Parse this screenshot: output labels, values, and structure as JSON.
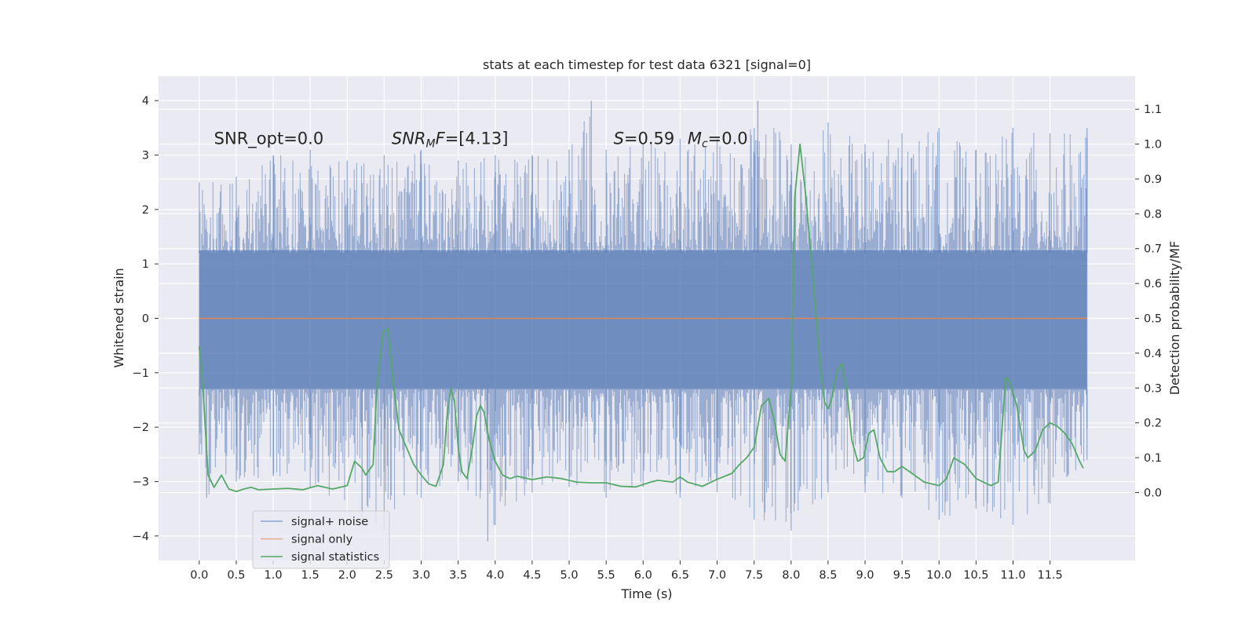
{
  "chart_data": {
    "type": "line",
    "title": "stats at each timestep for test data 6321 [signal=0]",
    "xlabel": "Time (s)",
    "ylabel": "Whitened strain",
    "y2label": "Detection probability/MF",
    "xlim": [
      -0.55,
      12.65
    ],
    "ylim": [
      -4.45,
      4.45
    ],
    "y2lim": [
      -0.195,
      1.195
    ],
    "x_ticks": [
      0.0,
      0.5,
      1.0,
      1.5,
      2.0,
      2.5,
      3.0,
      3.5,
      4.0,
      4.5,
      5.0,
      5.5,
      6.0,
      6.5,
      7.0,
      7.5,
      8.0,
      8.5,
      9.0,
      9.5,
      10.0,
      10.5,
      11.0,
      11.5
    ],
    "x_tick_labels": [
      "0.0",
      "0.5",
      "1.0",
      "1.5",
      "2.0",
      "2.5",
      "3.0",
      "3.5",
      "4.0",
      "4.5",
      "5.0",
      "5.5",
      "6.0",
      "6.5",
      "7.0",
      "7.5",
      "8.0",
      "8.5",
      "9.0",
      "9.5",
      "10.0",
      "10.5",
      "11.0",
      "11.5"
    ],
    "y_ticks": [
      4,
      3,
      2,
      1,
      0,
      -1,
      -2,
      -3,
      -4
    ],
    "y_tick_labels": [
      "4",
      "3",
      "2",
      "1",
      "0",
      "−1",
      "−2",
      "−3",
      "−4"
    ],
    "y2_ticks": [
      1.1,
      1.0,
      0.9,
      0.8,
      0.7,
      0.6,
      0.5,
      0.4,
      0.3,
      0.2,
      0.1,
      0.0
    ],
    "y2_tick_labels": [
      "1.1",
      "1.0",
      "0.9",
      "0.8",
      "0.7",
      "0.6",
      "0.5",
      "0.4",
      "0.3",
      "0.2",
      "0.1",
      "0.0"
    ],
    "grid": true,
    "legend_position": "lower-left",
    "annotations": [
      {
        "text": "SNR_opt=0.0",
        "x": 0.2,
        "y": 3.2
      },
      {
        "text": "SNR",
        "sub": "M",
        "text2": "F=[4.13]",
        "italic": true,
        "x": 2.6,
        "y": 3.2
      },
      {
        "text": "S",
        "italic_part": true,
        "rest": "=0.59",
        "x": 5.6,
        "y": 3.2
      },
      {
        "text": "M",
        "sub": "c",
        "rest": "=0.0",
        "x": 6.6,
        "y": 3.2
      }
    ],
    "series": [
      {
        "name": "signal+ noise",
        "color": "#4c72b0",
        "axis": "left",
        "style": "dense-noise",
        "x_range": [
          0.0,
          12.0
        ],
        "envelope_upper": [
          [
            0.0,
            2.5
          ],
          [
            0.5,
            2.6
          ],
          [
            1.0,
            3.0
          ],
          [
            1.5,
            3.1
          ],
          [
            2.0,
            2.9
          ],
          [
            2.5,
            3.0
          ],
          [
            3.0,
            3.1
          ],
          [
            3.5,
            2.9
          ],
          [
            4.0,
            3.0
          ],
          [
            4.5,
            3.0
          ],
          [
            5.0,
            3.1
          ],
          [
            5.3,
            4.0
          ],
          [
            5.5,
            3.1
          ],
          [
            6.0,
            3.2
          ],
          [
            6.5,
            3.3
          ],
          [
            7.0,
            3.3
          ],
          [
            7.5,
            3.5
          ],
          [
            7.55,
            4.0
          ],
          [
            8.0,
            3.2
          ],
          [
            8.5,
            3.6
          ],
          [
            9.0,
            3.2
          ],
          [
            9.5,
            3.4
          ],
          [
            10.0,
            3.5
          ],
          [
            10.5,
            3.1
          ],
          [
            11.0,
            3.5
          ],
          [
            11.5,
            3.4
          ],
          [
            12.0,
            3.5
          ]
        ],
        "envelope_lower": [
          [
            0.0,
            -2.5
          ],
          [
            0.1,
            -3.3
          ],
          [
            0.5,
            -3.0
          ],
          [
            1.0,
            -2.9
          ],
          [
            1.5,
            -3.1
          ],
          [
            2.2,
            -3.7
          ],
          [
            2.5,
            -3.9
          ],
          [
            3.0,
            -3.3
          ],
          [
            3.5,
            -3.0
          ],
          [
            3.9,
            -4.1
          ],
          [
            4.0,
            -3.8
          ],
          [
            4.5,
            -3.2
          ],
          [
            5.0,
            -3.1
          ],
          [
            5.5,
            -3.3
          ],
          [
            6.0,
            -3.1
          ],
          [
            6.5,
            -3.3
          ],
          [
            7.0,
            -3.2
          ],
          [
            7.5,
            -3.7
          ],
          [
            8.0,
            -3.9
          ],
          [
            8.5,
            -3.2
          ],
          [
            9.0,
            -3.2
          ],
          [
            9.5,
            -3.3
          ],
          [
            10.0,
            -3.7
          ],
          [
            10.5,
            -3.5
          ],
          [
            11.0,
            -3.8
          ],
          [
            11.5,
            -3.4
          ],
          [
            12.0,
            -2.6
          ]
        ]
      },
      {
        "name": "signal only",
        "color": "#dd8452",
        "axis": "left",
        "x": [
          0.0,
          12.0
        ],
        "y": [
          0.0,
          0.0
        ]
      },
      {
        "name": "signal statistics",
        "color": "#55a868",
        "axis": "right",
        "x": [
          0.0,
          0.05,
          0.12,
          0.2,
          0.3,
          0.4,
          0.5,
          0.6,
          0.7,
          0.8,
          1.0,
          1.2,
          1.4,
          1.6,
          1.8,
          2.0,
          2.1,
          2.2,
          2.25,
          2.35,
          2.4,
          2.48,
          2.55,
          2.62,
          2.7,
          2.8,
          2.9,
          3.0,
          3.1,
          3.2,
          3.3,
          3.35,
          3.4,
          3.45,
          3.5,
          3.55,
          3.62,
          3.7,
          3.75,
          3.8,
          3.85,
          3.92,
          4.0,
          4.1,
          4.2,
          4.3,
          4.5,
          4.7,
          4.9,
          5.1,
          5.3,
          5.5,
          5.7,
          5.9,
          6.1,
          6.2,
          6.4,
          6.5,
          6.6,
          6.8,
          7.0,
          7.2,
          7.3,
          7.4,
          7.5,
          7.6,
          7.7,
          7.78,
          7.85,
          7.92,
          8.0,
          8.05,
          8.12,
          8.2,
          8.3,
          8.4,
          8.45,
          8.5,
          8.55,
          8.62,
          8.68,
          8.75,
          8.82,
          8.9,
          8.98,
          9.05,
          9.12,
          9.2,
          9.3,
          9.4,
          9.5,
          9.6,
          9.7,
          9.8,
          10.0,
          10.1,
          10.2,
          10.35,
          10.5,
          10.7,
          10.8,
          10.9,
          10.95,
          11.05,
          11.15,
          11.2,
          11.3,
          11.4,
          11.5,
          11.6,
          11.7,
          11.8,
          11.9,
          11.95
        ],
        "y": [
          0.42,
          0.3,
          0.05,
          0.015,
          0.05,
          0.01,
          0.003,
          0.01,
          0.015,
          0.008,
          0.01,
          0.012,
          0.008,
          0.02,
          0.01,
          0.02,
          0.09,
          0.07,
          0.05,
          0.08,
          0.3,
          0.46,
          0.47,
          0.32,
          0.18,
          0.13,
          0.08,
          0.05,
          0.025,
          0.018,
          0.08,
          0.22,
          0.3,
          0.26,
          0.13,
          0.06,
          0.04,
          0.14,
          0.22,
          0.25,
          0.23,
          0.15,
          0.09,
          0.05,
          0.04,
          0.047,
          0.037,
          0.045,
          0.04,
          0.03,
          0.028,
          0.028,
          0.018,
          0.016,
          0.03,
          0.035,
          0.03,
          0.045,
          0.03,
          0.018,
          0.038,
          0.055,
          0.08,
          0.1,
          0.13,
          0.25,
          0.27,
          0.2,
          0.11,
          0.09,
          0.3,
          0.85,
          1.0,
          0.85,
          0.6,
          0.35,
          0.26,
          0.24,
          0.27,
          0.35,
          0.37,
          0.3,
          0.15,
          0.09,
          0.1,
          0.17,
          0.18,
          0.1,
          0.06,
          0.06,
          0.075,
          0.06,
          0.045,
          0.03,
          0.02,
          0.04,
          0.1,
          0.08,
          0.04,
          0.02,
          0.03,
          0.33,
          0.32,
          0.25,
          0.12,
          0.1,
          0.12,
          0.18,
          0.2,
          0.19,
          0.17,
          0.14,
          0.09,
          0.07
        ],
        "mirrored": true
      }
    ]
  }
}
